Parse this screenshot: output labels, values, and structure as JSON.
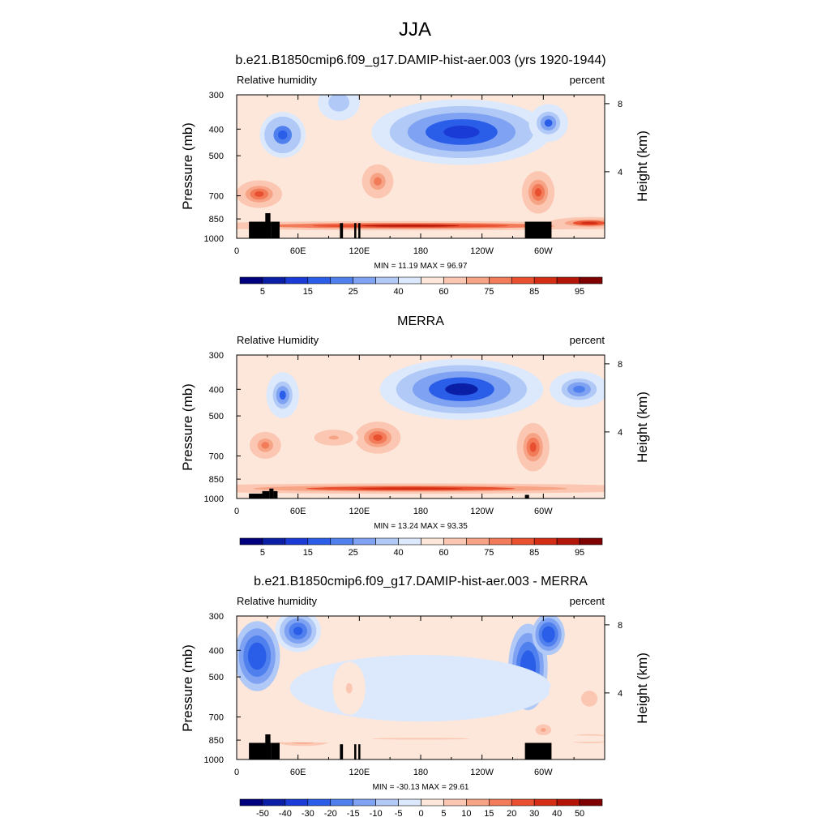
{
  "page_title": "JJA",
  "chart_data": [
    {
      "type": "heatmap",
      "title": "b.e21.B1850cmip6.f09_g17.DAMIP-hist-aer.003 (yrs 1920-1944)",
      "left_label": "Relative humidity",
      "right_label": "percent",
      "ylabel": "Pressure (mb)",
      "ylabel_right": "Height (km)",
      "xticks": [
        "0",
        "60E",
        "120E",
        "180",
        "120W",
        "60W"
      ],
      "yticks": [
        "300",
        "400",
        "500",
        "700",
        "850",
        "1000"
      ],
      "yticks_right": [
        "8",
        "4"
      ],
      "stats": "MIN =  11.19  MAX =  96.97",
      "colorbar_labels": [
        "5",
        "15",
        "25",
        "40",
        "60",
        "75",
        "85",
        "95"
      ],
      "colorbar_colors": [
        "#00007f",
        "#0a1fa5",
        "#1a3bd5",
        "#2b5ee8",
        "#4f80ee",
        "#7fa3f2",
        "#b0c9f6",
        "#dce8fb",
        "#fde7da",
        "#fbc7b2",
        "#f7a386",
        "#f27b5a",
        "#e8502f",
        "#d42d16",
        "#b31508",
        "#7f0000"
      ],
      "xlim": [
        0,
        360
      ],
      "ylim": [
        1000,
        300
      ],
      "topography": [
        {
          "x0": 12,
          "x1": 34,
          "p": 870
        },
        {
          "x0": 28,
          "x1": 33,
          "p": 810
        },
        {
          "x0": 34,
          "x1": 42,
          "p": 870
        },
        {
          "x0": 101,
          "x1": 104,
          "p": 880
        },
        {
          "x0": 115,
          "x1": 117,
          "p": 880
        },
        {
          "x0": 119,
          "x1": 121,
          "p": 880
        },
        {
          "x0": 282,
          "x1": 308,
          "p": 870
        }
      ],
      "features": [
        {
          "lon": 45,
          "p": 420,
          "v": 15,
          "rx": 14,
          "rp": 80
        },
        {
          "lon": 100,
          "p": 320,
          "v": 30,
          "rx": 16,
          "rp": 60
        },
        {
          "lon": 220,
          "p": 410,
          "v": 10,
          "rx": 55,
          "rp": 110
        },
        {
          "lon": 305,
          "p": 380,
          "v": 18,
          "rx": 12,
          "rp": 60
        },
        {
          "lon": 22,
          "p": 690,
          "v": 80,
          "rx": 14,
          "rp": 80
        },
        {
          "lon": 138,
          "p": 620,
          "v": 75,
          "rx": 12,
          "rp": 110
        },
        {
          "lon": 295,
          "p": 680,
          "v": 80,
          "rx": 10,
          "rp": 120
        },
        {
          "lon": 170,
          "p": 900,
          "v": 90,
          "rx": 150,
          "rp": 35
        },
        {
          "lon": 345,
          "p": 880,
          "v": 88,
          "rx": 25,
          "rp": 45
        }
      ]
    },
    {
      "type": "heatmap",
      "title": "MERRA",
      "left_label": "Relative Humidity",
      "right_label": "percent",
      "ylabel": "Pressure (mb)",
      "ylabel_right": "Height (km)",
      "xticks": [
        "0",
        "60E",
        "120E",
        "180",
        "120W",
        "60W"
      ],
      "yticks": [
        "300",
        "400",
        "500",
        "700",
        "850",
        "1000"
      ],
      "yticks_right": [
        "8",
        "4"
      ],
      "stats": "MIN =  13.24  MAX =  93.35",
      "colorbar_labels": [
        "5",
        "15",
        "25",
        "40",
        "60",
        "75",
        "85",
        "95"
      ],
      "colorbar_colors": [
        "#00007f",
        "#0a1fa5",
        "#1a3bd5",
        "#2b5ee8",
        "#4f80ee",
        "#7fa3f2",
        "#b0c9f6",
        "#dce8fb",
        "#fde7da",
        "#fbc7b2",
        "#f7a386",
        "#f27b5a",
        "#e8502f",
        "#d42d16",
        "#b31508",
        "#7f0000"
      ],
      "xlim": [
        0,
        360
      ],
      "ylim": [
        1000,
        300
      ],
      "topography": [
        {
          "x0": 12,
          "x1": 25,
          "p": 960
        },
        {
          "x0": 25,
          "x1": 32,
          "p": 940
        },
        {
          "x0": 32,
          "x1": 36,
          "p": 920
        },
        {
          "x0": 36,
          "x1": 40,
          "p": 940
        },
        {
          "x0": 282,
          "x1": 286,
          "p": 970
        }
      ],
      "features": [
        {
          "lon": 45,
          "p": 420,
          "v": 18,
          "rx": 10,
          "rp": 80
        },
        {
          "lon": 220,
          "p": 400,
          "v": 8,
          "rx": 50,
          "rp": 100
        },
        {
          "lon": 335,
          "p": 400,
          "v": 22,
          "rx": 18,
          "rp": 60
        },
        {
          "lon": 28,
          "p": 640,
          "v": 78,
          "rx": 12,
          "rp": 90
        },
        {
          "lon": 138,
          "p": 600,
          "v": 82,
          "rx": 14,
          "rp": 80
        },
        {
          "lon": 95,
          "p": 600,
          "v": 72,
          "rx": 15,
          "rp": 50
        },
        {
          "lon": 290,
          "p": 650,
          "v": 82,
          "rx": 10,
          "rp": 130
        },
        {
          "lon": 170,
          "p": 920,
          "v": 88,
          "rx": 160,
          "rp": 40
        }
      ]
    },
    {
      "type": "heatmap",
      "title": "b.e21.B1850cmip6.f09_g17.DAMIP-hist-aer.003 - MERRA",
      "left_label": "Relative humidity",
      "right_label": "percent",
      "ylabel": "Pressure (mb)",
      "ylabel_right": "Height (km)",
      "xticks": [
        "0",
        "60E",
        "120E",
        "180",
        "120W",
        "60W"
      ],
      "yticks": [
        "300",
        "400",
        "500",
        "700",
        "850",
        "1000"
      ],
      "yticks_right": [
        "8",
        "4"
      ],
      "stats": "MIN = -30.13  MAX =  29.61",
      "colorbar_labels": [
        "-50",
        "-40",
        "-30",
        "-20",
        "-15",
        "-10",
        "-5",
        "0",
        "5",
        "10",
        "15",
        "20",
        "30",
        "40",
        "50"
      ],
      "colorbar_colors": [
        "#00007f",
        "#0a1fa5",
        "#1a3bd5",
        "#2b5ee8",
        "#4f80ee",
        "#7fa3f2",
        "#b0c9f6",
        "#dce8fb",
        "#fde7da",
        "#fbc7b2",
        "#f7a386",
        "#f27b5a",
        "#e8502f",
        "#d42d16",
        "#b31508",
        "#7f0000"
      ],
      "xlim": [
        0,
        360
      ],
      "ylim": [
        1000,
        300
      ],
      "topography": [
        {
          "x0": 12,
          "x1": 34,
          "p": 870
        },
        {
          "x0": 28,
          "x1": 33,
          "p": 810
        },
        {
          "x0": 34,
          "x1": 42,
          "p": 870
        },
        {
          "x0": 101,
          "x1": 104,
          "p": 880
        },
        {
          "x0": 115,
          "x1": 117,
          "p": 880
        },
        {
          "x0": 119,
          "x1": 121,
          "p": 880
        },
        {
          "x0": 282,
          "x1": 308,
          "p": 870
        }
      ],
      "features": [
        {
          "lon": 20,
          "p": 420,
          "v": -28,
          "rx": 14,
          "rp": 120
        },
        {
          "lon": 60,
          "p": 340,
          "v": -22,
          "rx": 14,
          "rp": 60
        },
        {
          "lon": 285,
          "p": 460,
          "v": -26,
          "rx": 12,
          "rp": 160
        },
        {
          "lon": 305,
          "p": 350,
          "v": -30,
          "rx": 10,
          "rp": 60
        },
        {
          "lon": 180,
          "p": 550,
          "v": -5,
          "rx": 80,
          "rp": 150
        },
        {
          "lon": 345,
          "p": 600,
          "v": 6,
          "rx": 25,
          "rp": 200
        },
        {
          "lon": 110,
          "p": 550,
          "v": 6,
          "rx": 10,
          "rp": 120
        },
        {
          "lon": 65,
          "p": 860,
          "v": 14,
          "rx": 20,
          "rp": 40
        },
        {
          "lon": 345,
          "p": 840,
          "v": 16,
          "rx": 18,
          "rp": 40
        },
        {
          "lon": 300,
          "p": 780,
          "v": 12,
          "rx": 8,
          "rp": 60
        },
        {
          "lon": 180,
          "p": 840,
          "v": 6,
          "rx": 150,
          "rp": 30
        }
      ]
    }
  ]
}
